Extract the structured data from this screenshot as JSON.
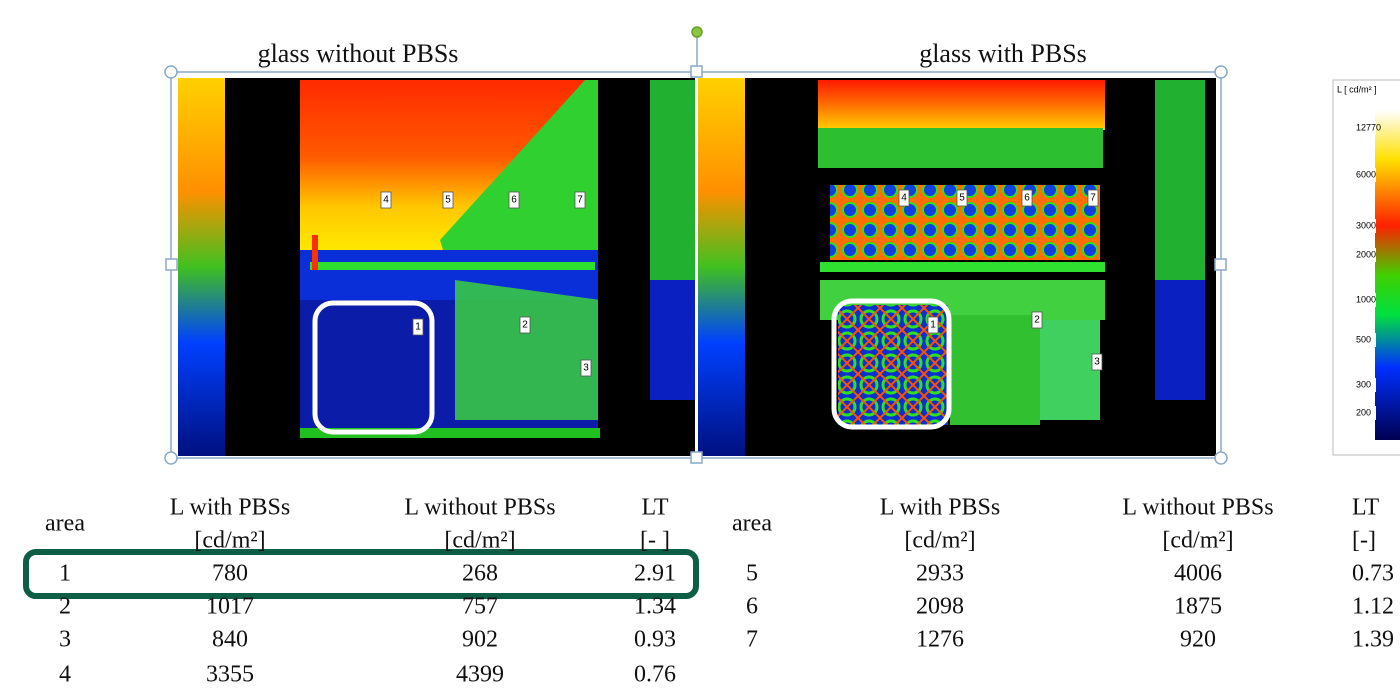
{
  "figures": [
    {
      "title": "glass without PBSs",
      "area_labels": [
        "1",
        "2",
        "3",
        "4",
        "5",
        "6",
        "7"
      ]
    },
    {
      "title": "glass with PBSs",
      "area_labels": [
        "1",
        "2",
        "3",
        "4",
        "5",
        "6",
        "7"
      ]
    }
  ],
  "legend": {
    "title": "L [ cd/m² ]",
    "values": [
      12770,
      6000,
      3000,
      2000,
      1000,
      500,
      300,
      200
    ]
  },
  "tables": [
    {
      "columns": [
        "area",
        "L with PBSs",
        "L without PBSs",
        "LT"
      ],
      "units": [
        "[cd/m²]",
        "[cd/m²]",
        "[- ]"
      ],
      "rows": [
        [
          1,
          780,
          268,
          2.91
        ],
        [
          2,
          1017,
          757,
          1.34
        ],
        [
          3,
          840,
          902,
          0.93
        ],
        [
          4,
          3355,
          4399,
          0.76
        ]
      ]
    },
    {
      "columns": [
        "area",
        "L with PBSs",
        "L without PBSs",
        "LT"
      ],
      "units": [
        "[cd/m²]",
        "[cd/m²]",
        "[-]"
      ],
      "rows": [
        [
          5,
          2933,
          4006,
          0.73
        ],
        [
          6,
          2098,
          1875,
          1.12
        ],
        [
          7,
          1276,
          920,
          1.39
        ]
      ]
    }
  ]
}
